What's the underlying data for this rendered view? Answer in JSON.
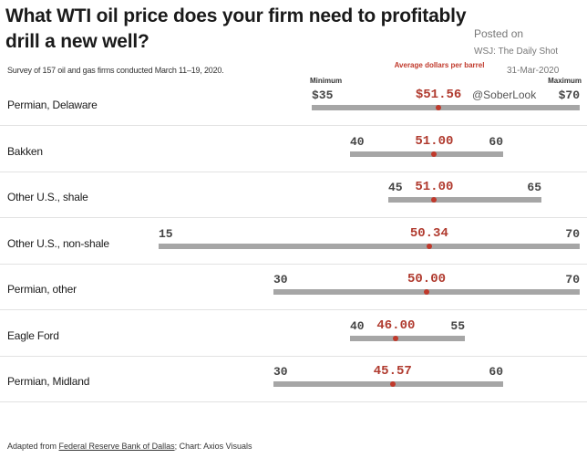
{
  "title": "What WTI oil price does your firm need to profitably drill a new well?",
  "subtitle": "Survey of 157 oil and gas firms conducted March 11–19, 2020.",
  "watermark": {
    "posted": "Posted on",
    "source": "WSJ: The Daily Shot",
    "date": "31-Mar-2020",
    "handle": "@SoberLook"
  },
  "headers": {
    "minimum": "Minimum",
    "average": "Average dollars per barrel",
    "maximum": "Maximum"
  },
  "footer": {
    "prefix": "Adapted from ",
    "link": "Federal Reserve Bank of Dallas",
    "suffix": "; Chart: Axios Visuals"
  },
  "colors": {
    "accent": "#c0392b",
    "bar": "#a6a6a6"
  },
  "chart_data": {
    "type": "range",
    "title": "What WTI oil price does your firm need to profitably drill a new well?",
    "xlim": [
      15,
      70
    ],
    "unit": "dollars per barrel",
    "rows": [
      {
        "region": "Permian, Delaware",
        "min": 35,
        "avg": 51.56,
        "max": 70,
        "min_label": "$35",
        "avg_label": "$51.56",
        "max_label": "$70"
      },
      {
        "region": "Bakken",
        "min": 40,
        "avg": 51.0,
        "max": 60,
        "min_label": "40",
        "avg_label": "51.00",
        "max_label": "60"
      },
      {
        "region": "Other U.S., shale",
        "min": 45,
        "avg": 51.0,
        "max": 65,
        "min_label": "45",
        "avg_label": "51.00",
        "max_label": "65"
      },
      {
        "region": "Other U.S., non-shale",
        "min": 15,
        "avg": 50.34,
        "max": 70,
        "min_label": "15",
        "avg_label": "50.34",
        "max_label": "70"
      },
      {
        "region": "Permian, other",
        "min": 30,
        "avg": 50.0,
        "max": 70,
        "min_label": "30",
        "avg_label": "50.00",
        "max_label": "70"
      },
      {
        "region": "Eagle Ford",
        "min": 40,
        "avg": 46.0,
        "max": 55,
        "min_label": "40",
        "avg_label": "46.00",
        "max_label": "55"
      },
      {
        "region": "Permian, Midland",
        "min": 30,
        "avg": 45.57,
        "max": 60,
        "min_label": "30",
        "avg_label": "45.57",
        "max_label": "60"
      }
    ]
  }
}
